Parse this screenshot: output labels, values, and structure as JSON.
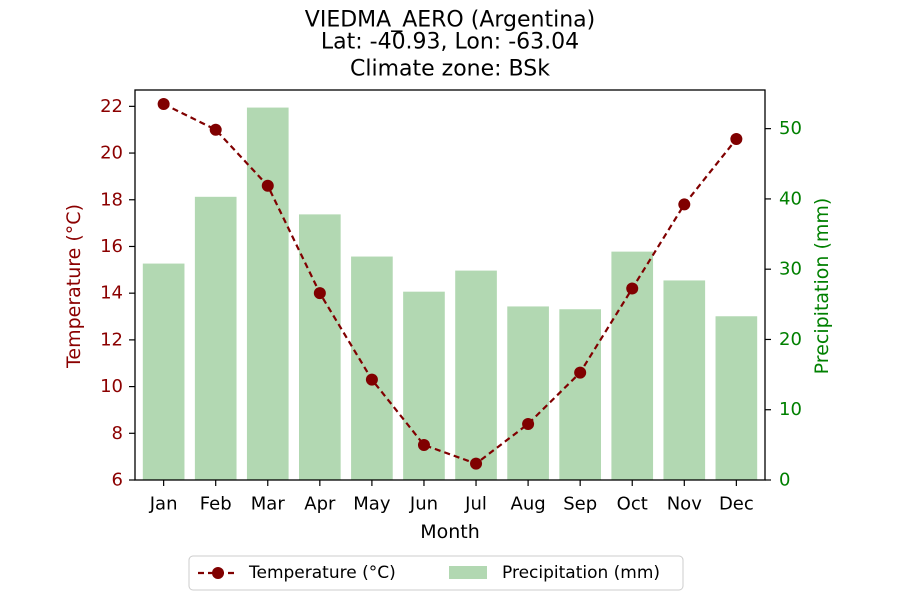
{
  "chart_data": {
    "type": "bar",
    "title_lines": [
      "VIEDMA_AERO (Argentina)",
      "Lat: -40.93, Lon: -63.04",
      "Climate zone: BSk"
    ],
    "xlabel": "Month",
    "ylabel_left": "Temperature (°C)",
    "ylabel_right": "Precipitation (mm)",
    "categories": [
      "Jan",
      "Feb",
      "Mar",
      "Apr",
      "May",
      "Jun",
      "Jul",
      "Aug",
      "Sep",
      "Oct",
      "Nov",
      "Dec"
    ],
    "series": [
      {
        "name": "Precipitation (mm)",
        "kind": "bar",
        "axis": "right",
        "color": "#b2d8b2",
        "values": [
          30.8,
          40.3,
          53.0,
          37.8,
          31.8,
          26.8,
          29.8,
          24.7,
          24.3,
          32.5,
          28.4,
          23.3
        ]
      },
      {
        "name": "Temperature (°C)",
        "kind": "line",
        "axis": "left",
        "color": "#800000",
        "values": [
          22.1,
          21.0,
          18.6,
          14.0,
          10.3,
          7.5,
          6.7,
          8.4,
          10.6,
          14.2,
          17.8,
          20.6
        ]
      }
    ],
    "ylim_left": [
      6,
      22.7
    ],
    "yticks_left": [
      "6",
      "8",
      "10",
      "12",
      "14",
      "16",
      "18",
      "20",
      "22"
    ],
    "ylim_right": [
      0,
      55.5
    ],
    "yticks_right": [
      "0",
      "10",
      "20",
      "30",
      "40",
      "50"
    ],
    "left_axis_color": "#8b0000",
    "right_axis_color": "#008000",
    "legend_position": "bottom-center",
    "grid": false
  }
}
